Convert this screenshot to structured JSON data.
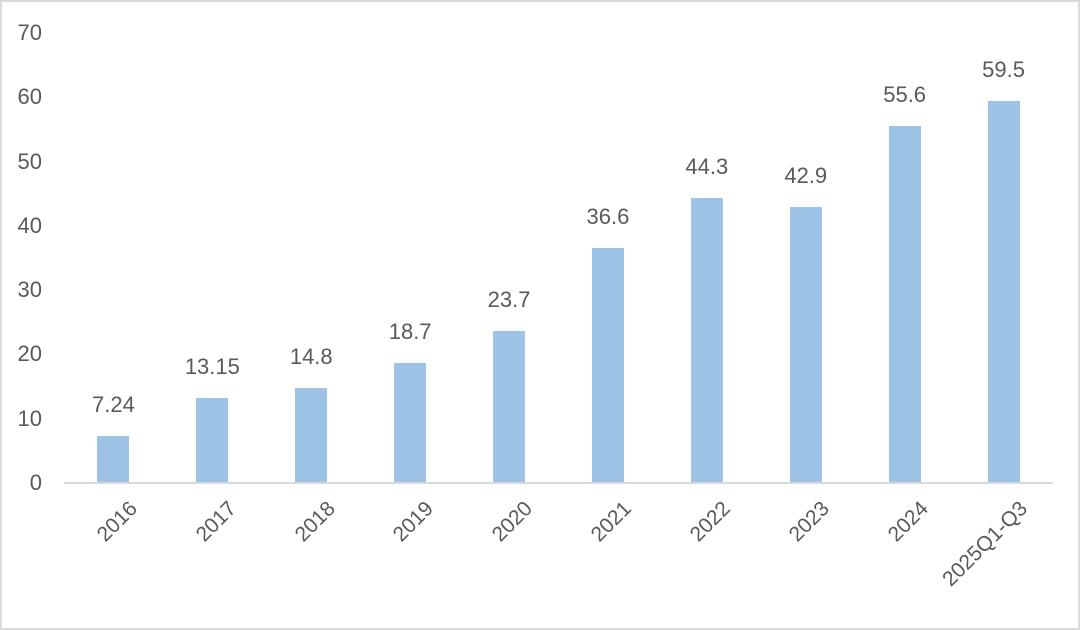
{
  "chart_data": {
    "type": "bar",
    "title": "",
    "xlabel": "",
    "ylabel": "",
    "categories": [
      "2016",
      "2017",
      "2018",
      "2019",
      "2020",
      "2021",
      "2022",
      "2023",
      "2024",
      "2025Q1-Q3"
    ],
    "values": [
      7.24,
      13.15,
      14.8,
      18.7,
      23.7,
      36.6,
      44.3,
      42.9,
      55.6,
      59.5
    ],
    "value_labels": [
      "7.24",
      "13.15",
      "14.8",
      "18.7",
      "23.7",
      "36.6",
      "44.3",
      "42.9",
      "55.6",
      "59.5"
    ],
    "ylim": [
      0,
      70
    ],
    "yticks": [
      0,
      10,
      20,
      30,
      40,
      50,
      60,
      70
    ],
    "grid": false,
    "legend": false,
    "x_label_rotation_deg": -45,
    "bar_color": "#9dc3e6",
    "text_color": "#595959",
    "axis_line_color": "#d9d9d9",
    "frame_border_color": "#d9d9d9",
    "background_color": "#ffffff"
  }
}
